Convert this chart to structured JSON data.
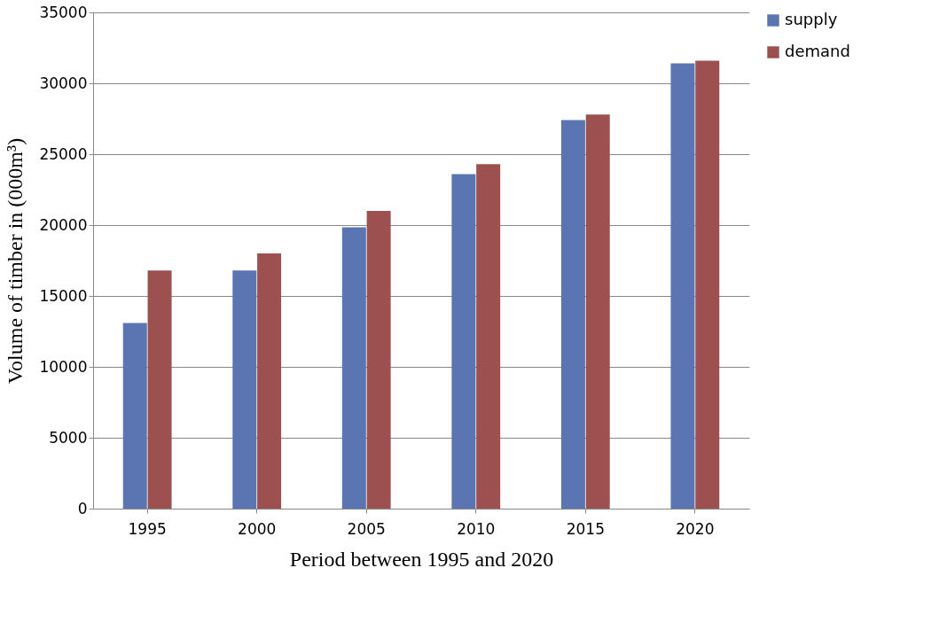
{
  "chart_data": {
    "type": "bar",
    "xlabel": "Period   between 1995 and 2020",
    "ylabel": "Volume of timber in (000m³)",
    "categories": [
      "1995",
      "2000",
      "2005",
      "2010",
      "2015",
      "2020"
    ],
    "series": [
      {
        "name": "supply",
        "color": "#5b74b2",
        "values": [
          13100,
          16800,
          19850,
          23600,
          27400,
          31400
        ]
      },
      {
        "name": "demand",
        "color": "#9c5050",
        "values": [
          16800,
          18000,
          21000,
          24300,
          27800,
          31600
        ]
      }
    ],
    "ylim": [
      0,
      35000
    ],
    "yticks": [
      0,
      5000,
      10000,
      15000,
      20000,
      25000,
      30000,
      35000
    ],
    "grid": "y",
    "legend": "right"
  }
}
